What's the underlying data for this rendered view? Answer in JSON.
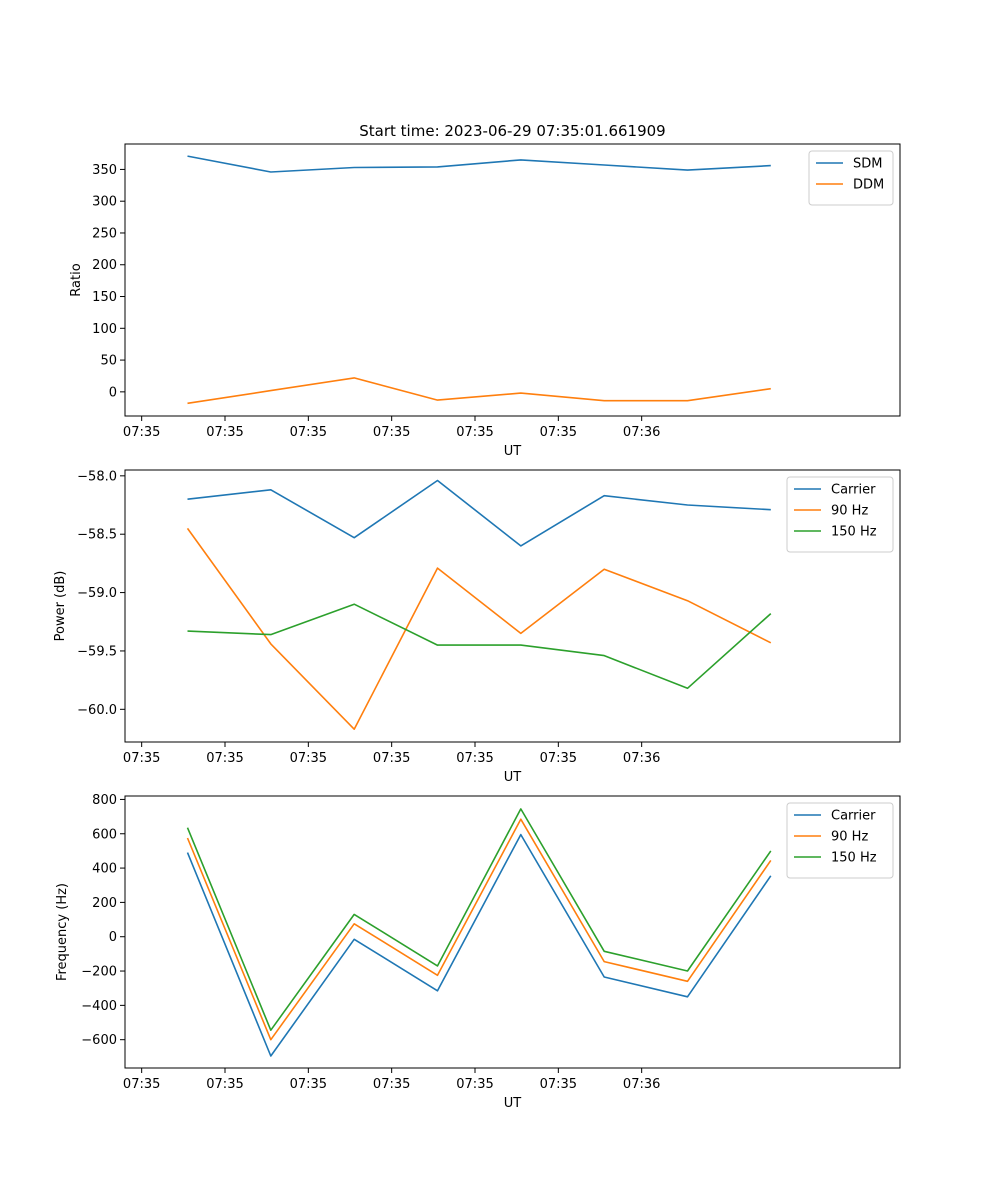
{
  "figure": {
    "title": "Start time: 2023-06-29 07:35:01.661909"
  },
  "chart_data": [
    {
      "type": "line",
      "title": "Start time: 2023-06-29 07:35:01.661909",
      "xlabel": "UT",
      "ylabel": "Ratio",
      "x_ticks": [
        "07:35",
        "07:35",
        "07:35",
        "07:35",
        "07:35",
        "07:35",
        "07:36"
      ],
      "xlim": [
        -0.2,
        9.1
      ],
      "ylim": [
        -38,
        390
      ],
      "y_ticks": [
        0,
        50,
        100,
        150,
        200,
        250,
        300,
        350
      ],
      "y_tick_labels": [
        "0",
        "50",
        "100",
        "150",
        "200",
        "250",
        "300",
        "350"
      ],
      "legend": "top-right",
      "series": [
        {
          "name": "SDM",
          "color": "#1f77b4",
          "x": [
            0.55,
            1.55,
            2.55,
            3.55,
            4.55,
            5.55,
            6.55,
            7.55
          ],
          "values": [
            371,
            346,
            353,
            354,
            365,
            357,
            349,
            356
          ]
        },
        {
          "name": "DDM",
          "color": "#ff7f0e",
          "x": [
            0.55,
            1.55,
            2.55,
            3.55,
            4.55,
            5.55,
            6.55,
            7.55
          ],
          "values": [
            -18,
            2,
            22,
            -13,
            -2,
            -14,
            -14,
            5
          ]
        }
      ]
    },
    {
      "type": "line",
      "title": "",
      "xlabel": "UT",
      "ylabel": "Power (dB)",
      "x_ticks": [
        "07:35",
        "07:35",
        "07:35",
        "07:35",
        "07:35",
        "07:35",
        "07:36"
      ],
      "xlim": [
        -0.2,
        9.1
      ],
      "ylim": [
        -60.28,
        -57.95
      ],
      "y_ticks": [
        -60.0,
        -59.5,
        -59.0,
        -58.5,
        -58.0
      ],
      "y_tick_labels": [
        "−60.0",
        "−59.5",
        "−59.0",
        "−58.5",
        "−58.0"
      ],
      "legend": "top-right",
      "series": [
        {
          "name": "Carrier",
          "color": "#1f77b4",
          "x": [
            0.55,
            1.55,
            2.55,
            3.55,
            4.55,
            5.55,
            6.55,
            7.55
          ],
          "values": [
            -58.2,
            -58.12,
            -58.53,
            -58.04,
            -58.6,
            -58.17,
            -58.25,
            -58.29
          ]
        },
        {
          "name": "90 Hz",
          "color": "#ff7f0e",
          "x": [
            0.55,
            1.55,
            2.55,
            3.55,
            4.55,
            5.55,
            6.55,
            7.55
          ],
          "values": [
            -58.45,
            -59.44,
            -60.17,
            -58.79,
            -59.35,
            -58.8,
            -59.07,
            -59.43
          ]
        },
        {
          "name": "150 Hz",
          "color": "#2ca02c",
          "x": [
            0.55,
            1.55,
            2.55,
            3.55,
            4.55,
            5.55,
            6.55,
            7.55
          ],
          "values": [
            -59.33,
            -59.36,
            -59.1,
            -59.45,
            -59.45,
            -59.54,
            -59.82,
            -59.18
          ]
        }
      ]
    },
    {
      "type": "line",
      "title": "",
      "xlabel": "UT",
      "ylabel": "Frequency (Hz)",
      "x_ticks": [
        "07:35",
        "07:35",
        "07:35",
        "07:35",
        "07:35",
        "07:35",
        "07:36"
      ],
      "xlim": [
        -0.2,
        9.1
      ],
      "ylim": [
        -765,
        820
      ],
      "y_ticks": [
        -600,
        -400,
        -200,
        0,
        200,
        400,
        600,
        800
      ],
      "y_tick_labels": [
        "−600",
        "−400",
        "−200",
        "0",
        "200",
        "400",
        "600",
        "800"
      ],
      "legend": "top-right",
      "series": [
        {
          "name": "Carrier",
          "color": "#1f77b4",
          "x": [
            0.55,
            1.55,
            2.55,
            3.55,
            4.55,
            5.55,
            6.55,
            7.55
          ],
          "values": [
            490,
            -695,
            -15,
            -315,
            595,
            -235,
            -350,
            355
          ]
        },
        {
          "name": "90 Hz",
          "color": "#ff7f0e",
          "x": [
            0.55,
            1.55,
            2.55,
            3.55,
            4.55,
            5.55,
            6.55,
            7.55
          ],
          "values": [
            575,
            -600,
            75,
            -225,
            685,
            -145,
            -260,
            445
          ]
        },
        {
          "name": "150 Hz",
          "color": "#2ca02c",
          "x": [
            0.55,
            1.55,
            2.55,
            3.55,
            4.55,
            5.55,
            6.55,
            7.55
          ],
          "values": [
            635,
            -545,
            130,
            -170,
            745,
            -85,
            -200,
            500
          ]
        }
      ]
    }
  ]
}
